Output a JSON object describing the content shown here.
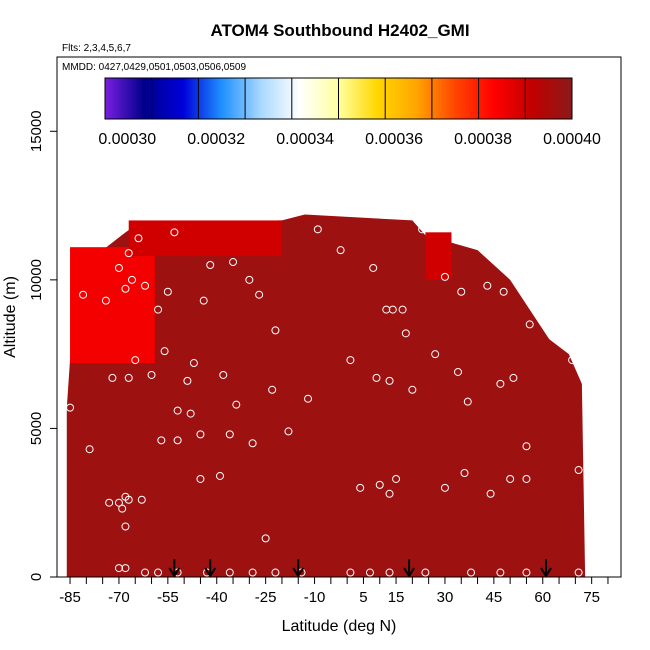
{
  "chart_data": {
    "type": "heatmap",
    "title": "ATOM4 Southbound H2402_GMI",
    "flights_note": "Flts: 2,3,4,5,6,7",
    "dates_note": "MMDD: 0427,0429,0501,0503,0506,0509",
    "xlabel": "Latitude (deg N)",
    "ylabel": "Altitude (m)",
    "xlim": [
      -89,
      84
    ],
    "ylim": [
      0,
      17500
    ],
    "x_tick_labels": [
      "-85",
      "-70",
      "-55",
      "-40",
      "-25",
      "-10",
      "5",
      "15",
      "30",
      "45",
      "60",
      "75"
    ],
    "x_tick_values": [
      -85,
      -70,
      -55,
      -40,
      -25,
      -10,
      5,
      15,
      30,
      45,
      60,
      75
    ],
    "x_minor_ticks": [
      -85,
      -80,
      -75,
      -70,
      -65,
      -60,
      -55,
      -50,
      -45,
      -40,
      -35,
      -30,
      -25,
      -20,
      -15,
      -10,
      -5,
      0,
      5,
      10,
      15,
      20,
      25,
      30,
      35,
      40,
      45,
      50,
      55,
      60,
      65,
      70,
      75,
      80
    ],
    "y_tick_labels": [
      "0",
      "5000",
      "10000",
      "15000"
    ],
    "y_tick_values": [
      0,
      5000,
      10000,
      15000
    ],
    "colorbar": {
      "min": 0.000295,
      "max": 0.0004,
      "tick_labels": [
        "0.00030",
        "0.00032",
        "0.00034",
        "0.00036",
        "0.00038",
        "0.00040"
      ],
      "tick_values": [
        0.0003,
        0.00032,
        0.00034,
        0.00036,
        0.00038,
        0.0004
      ],
      "stops": [
        "#7a1fe0",
        "#00008c",
        "#0000d8",
        "#1e90ff",
        "#a8d8ff",
        "#ffffff",
        "#ffffa0",
        "#ffd700",
        "#ffa500",
        "#ff4500",
        "#ff0000",
        "#c00000",
        "#8b1a1a"
      ]
    },
    "field": {
      "background_value": 0.000397,
      "background_color": "#a81c1c",
      "top_altitude_profile": [
        {
          "lat": -86,
          "alt": 5700
        },
        {
          "lat": -85,
          "alt": 7300
        },
        {
          "lat": -83,
          "alt": 9500
        },
        {
          "lat": -80,
          "alt": 10400
        },
        {
          "lat": -75,
          "alt": 11000
        },
        {
          "lat": -68,
          "alt": 11600
        },
        {
          "lat": -64,
          "alt": 11900
        },
        {
          "lat": -20,
          "alt": 12000
        },
        {
          "lat": -13,
          "alt": 12200
        },
        {
          "lat": 20,
          "alt": 12000
        },
        {
          "lat": 24,
          "alt": 11500
        },
        {
          "lat": 40,
          "alt": 11000
        },
        {
          "lat": 50,
          "alt": 10000
        },
        {
          "lat": 56,
          "alt": 9000
        },
        {
          "lat": 62,
          "alt": 8000
        },
        {
          "lat": 68,
          "alt": 7500
        },
        {
          "lat": 72,
          "alt": 6500
        },
        {
          "lat": 73,
          "alt": 0
        }
      ],
      "anomalies": [
        {
          "lat0": -84,
          "lat1": -67,
          "alt0": 8100,
          "alt1": 10300,
          "value": 0.000372
        },
        {
          "lat0": -85,
          "lat1": -59,
          "alt0": 7200,
          "alt1": 11100,
          "value": 0.000384
        },
        {
          "lat0": -67,
          "lat1": -20,
          "alt0": 10800,
          "alt1": 12000,
          "value": 0.000389
        },
        {
          "lat0": 24,
          "lat1": 32,
          "alt0": 10000,
          "alt1": 11600,
          "value": 0.000389
        }
      ]
    },
    "sample_points": [
      {
        "lat": -85,
        "alt": 5700
      },
      {
        "lat": -81,
        "alt": 9500
      },
      {
        "lat": -74,
        "alt": 9300
      },
      {
        "lat": -70,
        "alt": 10400
      },
      {
        "lat": -68,
        "alt": 9700
      },
      {
        "lat": -67,
        "alt": 10900
      },
      {
        "lat": -66,
        "alt": 10000
      },
      {
        "lat": -64,
        "alt": 11400
      },
      {
        "lat": -62,
        "alt": 9800
      },
      {
        "lat": -58,
        "alt": 9000
      },
      {
        "lat": -55,
        "alt": 9600
      },
      {
        "lat": -53,
        "alt": 11600
      },
      {
        "lat": -49,
        "alt": 6600
      },
      {
        "lat": -47,
        "alt": 7200
      },
      {
        "lat": -44,
        "alt": 9300
      },
      {
        "lat": -42,
        "alt": 10500
      },
      {
        "lat": -38,
        "alt": 6800
      },
      {
        "lat": -35,
        "alt": 10600
      },
      {
        "lat": -30,
        "alt": 10000
      },
      {
        "lat": -27,
        "alt": 9500
      },
      {
        "lat": -22,
        "alt": 8300
      },
      {
        "lat": -9,
        "alt": 11700
      },
      {
        "lat": -2,
        "alt": 11000
      },
      {
        "lat": 8,
        "alt": 10400
      },
      {
        "lat": 12,
        "alt": 9000
      },
      {
        "lat": 14,
        "alt": 9000
      },
      {
        "lat": 17,
        "alt": 9000
      },
      {
        "lat": 18,
        "alt": 8200
      },
      {
        "lat": 23,
        "alt": 11700
      },
      {
        "lat": 27,
        "alt": 7500
      },
      {
        "lat": 30,
        "alt": 10100
      },
      {
        "lat": 35,
        "alt": 9600
      },
      {
        "lat": 43,
        "alt": 9800
      },
      {
        "lat": 48,
        "alt": 9600
      },
      {
        "lat": 56,
        "alt": 8500
      },
      {
        "lat": 69,
        "alt": 7300
      },
      {
        "lat": -79,
        "alt": 4300
      },
      {
        "lat": -72,
        "alt": 6700
      },
      {
        "lat": -67,
        "alt": 6700
      },
      {
        "lat": -65,
        "alt": 7300
      },
      {
        "lat": -60,
        "alt": 6800
      },
      {
        "lat": -56,
        "alt": 7600
      },
      {
        "lat": -52,
        "alt": 5600
      },
      {
        "lat": -48,
        "alt": 5500
      },
      {
        "lat": -45,
        "alt": 4800
      },
      {
        "lat": -39,
        "alt": 3400
      },
      {
        "lat": -36,
        "alt": 4800
      },
      {
        "lat": -34,
        "alt": 5800
      },
      {
        "lat": -29,
        "alt": 4500
      },
      {
        "lat": -23,
        "alt": 6300
      },
      {
        "lat": -18,
        "alt": 4900
      },
      {
        "lat": -12,
        "alt": 6000
      },
      {
        "lat": 1,
        "alt": 7300
      },
      {
        "lat": 9,
        "alt": 6700
      },
      {
        "lat": 13,
        "alt": 6600
      },
      {
        "lat": 20,
        "alt": 6300
      },
      {
        "lat": 34,
        "alt": 6900
      },
      {
        "lat": 37,
        "alt": 5900
      },
      {
        "lat": 47,
        "alt": 6500
      },
      {
        "lat": 51,
        "alt": 6700
      },
      {
        "lat": 55,
        "alt": 4400
      },
      {
        "lat": -57,
        "alt": 4600
      },
      {
        "lat": -52,
        "alt": 4600
      },
      {
        "lat": -45,
        "alt": 3300
      },
      {
        "lat": -63,
        "alt": 2600
      },
      {
        "lat": -67,
        "alt": 2600
      },
      {
        "lat": -68,
        "alt": 2700
      },
      {
        "lat": -69,
        "alt": 2300
      },
      {
        "lat": -70,
        "alt": 2500
      },
      {
        "lat": -73,
        "alt": 2500
      },
      {
        "lat": -68,
        "alt": 1700
      },
      {
        "lat": 4,
        "alt": 3000
      },
      {
        "lat": 10,
        "alt": 3100
      },
      {
        "lat": 13,
        "alt": 2800
      },
      {
        "lat": 15,
        "alt": 3300
      },
      {
        "lat": 30,
        "alt": 3000
      },
      {
        "lat": 36,
        "alt": 3500
      },
      {
        "lat": 44,
        "alt": 2800
      },
      {
        "lat": 50,
        "alt": 3300
      },
      {
        "lat": 55,
        "alt": 3300
      },
      {
        "lat": 71,
        "alt": 3600
      },
      {
        "lat": -25,
        "alt": 1300
      },
      {
        "lat": -70,
        "alt": 300
      },
      {
        "lat": -68,
        "alt": 300
      },
      {
        "lat": -62,
        "alt": 150
      },
      {
        "lat": -58,
        "alt": 150
      },
      {
        "lat": -52,
        "alt": 150
      },
      {
        "lat": -43,
        "alt": 150
      },
      {
        "lat": -36,
        "alt": 150
      },
      {
        "lat": -29,
        "alt": 150
      },
      {
        "lat": -22,
        "alt": 150
      },
      {
        "lat": -14,
        "alt": 150
      },
      {
        "lat": 1,
        "alt": 150
      },
      {
        "lat": 7,
        "alt": 150
      },
      {
        "lat": 13,
        "alt": 150
      },
      {
        "lat": 24,
        "alt": 150
      },
      {
        "lat": 38,
        "alt": 150
      },
      {
        "lat": 47,
        "alt": 150
      },
      {
        "lat": 55,
        "alt": 150
      },
      {
        "lat": 71,
        "alt": 150
      }
    ],
    "arrow_markers_lat": [
      -53,
      -42,
      -15,
      19,
      61
    ]
  }
}
